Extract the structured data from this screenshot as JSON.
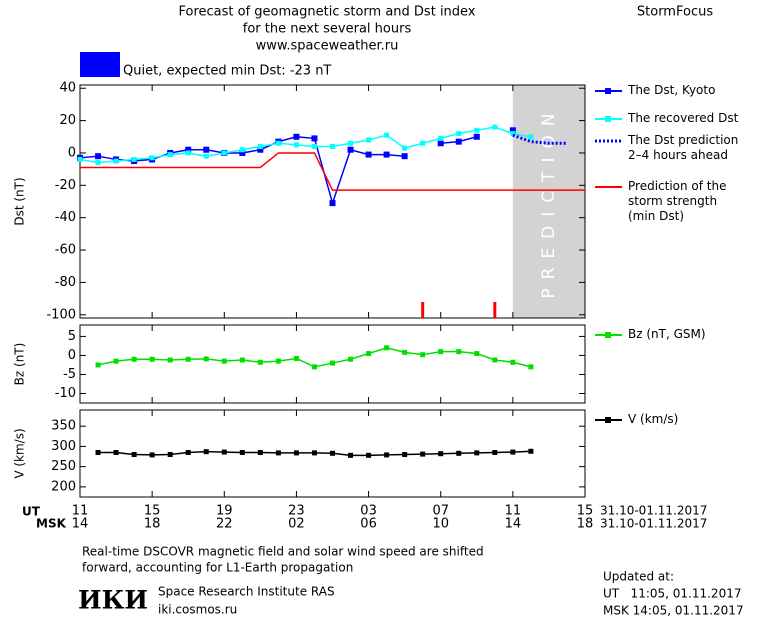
{
  "header": {
    "title": [
      "Forecast of geomagnetic storm and Dst index",
      "for the next several hours",
      "www.spaceweather.ru"
    ],
    "brand": "StormFocus"
  },
  "x_axis": {
    "xlim": [
      0,
      28
    ],
    "xticks": [
      {
        "value": 0,
        "label": "11"
      },
      {
        "value": 4,
        "label": "15"
      },
      {
        "value": 8,
        "label": "19"
      },
      {
        "value": 12,
        "label": "23"
      },
      {
        "value": 16,
        "label": "03"
      },
      {
        "value": 20,
        "label": "07"
      },
      {
        "value": 24,
        "label": "11"
      },
      {
        "value": 28,
        "label": "15"
      }
    ],
    "msk_labels": [
      "14",
      "18",
      "22",
      "02",
      "06",
      "10",
      "14",
      "18"
    ],
    "ut_label": "UT",
    "msk_label": "MSK",
    "date_range": [
      "31.10-01.11.2017",
      "31.10-01.11.2017"
    ]
  },
  "chart_data": [
    {
      "type": "line",
      "ylabel": "Dst (nT)",
      "ylim": [
        -102,
        42
      ],
      "yticks": [
        40,
        20,
        0,
        -20,
        -40,
        -60,
        -80,
        -100
      ],
      "status": {
        "text": "Quiet, expected min Dst: -23 nT",
        "color": "#0000ff"
      },
      "prediction_region": {
        "x": [
          24,
          28
        ],
        "label": "PREDICTION",
        "color": "#d3d3d3"
      },
      "markers_x": [
        19,
        23
      ],
      "markers_color": "#ff0000",
      "series": [
        {
          "name": "The Dst, Kyoto",
          "color": "#0000ff",
          "marker": true,
          "linestyle": "solid",
          "x": [
            0,
            1,
            2,
            3,
            4,
            5,
            6,
            7,
            8,
            9,
            10,
            11,
            12,
            13,
            14,
            15,
            16,
            17,
            18,
            19,
            20,
            21,
            22,
            23,
            24
          ],
          "values": [
            -3,
            -2,
            -4,
            -5,
            -4,
            0,
            2,
            2,
            0,
            0,
            2,
            7,
            10,
            9,
            -31,
            2,
            -1,
            -1,
            -2,
            null,
            6,
            7,
            10,
            null,
            14
          ]
        },
        {
          "name": "The recovered Dst",
          "color": "#00ffff",
          "marker": true,
          "linestyle": "solid",
          "x": [
            0,
            1,
            2,
            3,
            4,
            5,
            6,
            7,
            8,
            9,
            10,
            11,
            12,
            13,
            14,
            15,
            16,
            17,
            18,
            19,
            20,
            21,
            22,
            23,
            24,
            25
          ],
          "values": [
            -4,
            -6,
            -5,
            -4,
            -3,
            -1,
            0,
            -2,
            0,
            2,
            4,
            6,
            5,
            4,
            4,
            6,
            8,
            11,
            3,
            6,
            9,
            12,
            14,
            16,
            12,
            10
          ]
        },
        {
          "name": "The Dst prediction\n2–4 hours ahead",
          "color": "#0000ff",
          "marker": false,
          "linestyle": "dotted",
          "x": [
            24,
            25,
            26,
            27
          ],
          "values": [
            11,
            7,
            6,
            6
          ]
        },
        {
          "name": "Prediction of the\nstorm strength\n(min Dst)",
          "color": "#ff0000",
          "marker": false,
          "linestyle": "solid",
          "x": [
            0,
            10,
            11,
            13,
            14,
            28
          ],
          "values": [
            -9,
            -9,
            0,
            0,
            -23,
            -23
          ]
        }
      ]
    },
    {
      "type": "line",
      "ylabel": "Bz (nT)",
      "ylim": [
        -12.5,
        8
      ],
      "yticks": [
        5,
        0,
        -5,
        -10
      ],
      "series": [
        {
          "name": "Bz (nT, GSM)",
          "color": "#00e000",
          "marker": true,
          "linestyle": "solid",
          "x": [
            1,
            2,
            3,
            4,
            5,
            6,
            7,
            8,
            9,
            10,
            11,
            12,
            13,
            14,
            15,
            16,
            17,
            18,
            19,
            20,
            21,
            22,
            23,
            24,
            25
          ],
          "values": [
            -2.5,
            -1.5,
            -1,
            -1,
            -1.2,
            -1,
            -0.9,
            -1.5,
            -1.2,
            -1.8,
            -1.5,
            -0.8,
            -3,
            -2,
            -1,
            0.5,
            2,
            0.8,
            0.2,
            1,
            1,
            0.5,
            -1.2,
            -1.8,
            -3
          ]
        }
      ]
    },
    {
      "type": "line",
      "ylabel": "V (km/s)",
      "ylim": [
        175,
        390
      ],
      "yticks": [
        350,
        300,
        250,
        200
      ],
      "series": [
        {
          "name": "V (km/s)",
          "color": "#000000",
          "marker": true,
          "linestyle": "solid",
          "x": [
            1,
            2,
            3,
            4,
            5,
            6,
            7,
            8,
            9,
            10,
            11,
            12,
            13,
            14,
            15,
            16,
            17,
            18,
            19,
            20,
            21,
            22,
            23,
            24,
            25
          ],
          "values": [
            285,
            285,
            280,
            279,
            280,
            285,
            287,
            286,
            285,
            285,
            284,
            284,
            284,
            283,
            278,
            278,
            279,
            280,
            281,
            282,
            283,
            284,
            285,
            286,
            288
          ]
        }
      ]
    }
  ],
  "footer": {
    "note": [
      "Real-time DSCOVR magnetic field and solar wind speed are shifted",
      "forward, accounting for L1-Earth propagation"
    ],
    "logo": "ИКИ",
    "institute": "Space Research Institute RAS",
    "site": "iki.cosmos.ru",
    "updated_label": "Updated at:",
    "updated_ut": "UT   11:05, 01.11.2017",
    "updated_msk": "MSK 14:05, 01.11.2017"
  }
}
